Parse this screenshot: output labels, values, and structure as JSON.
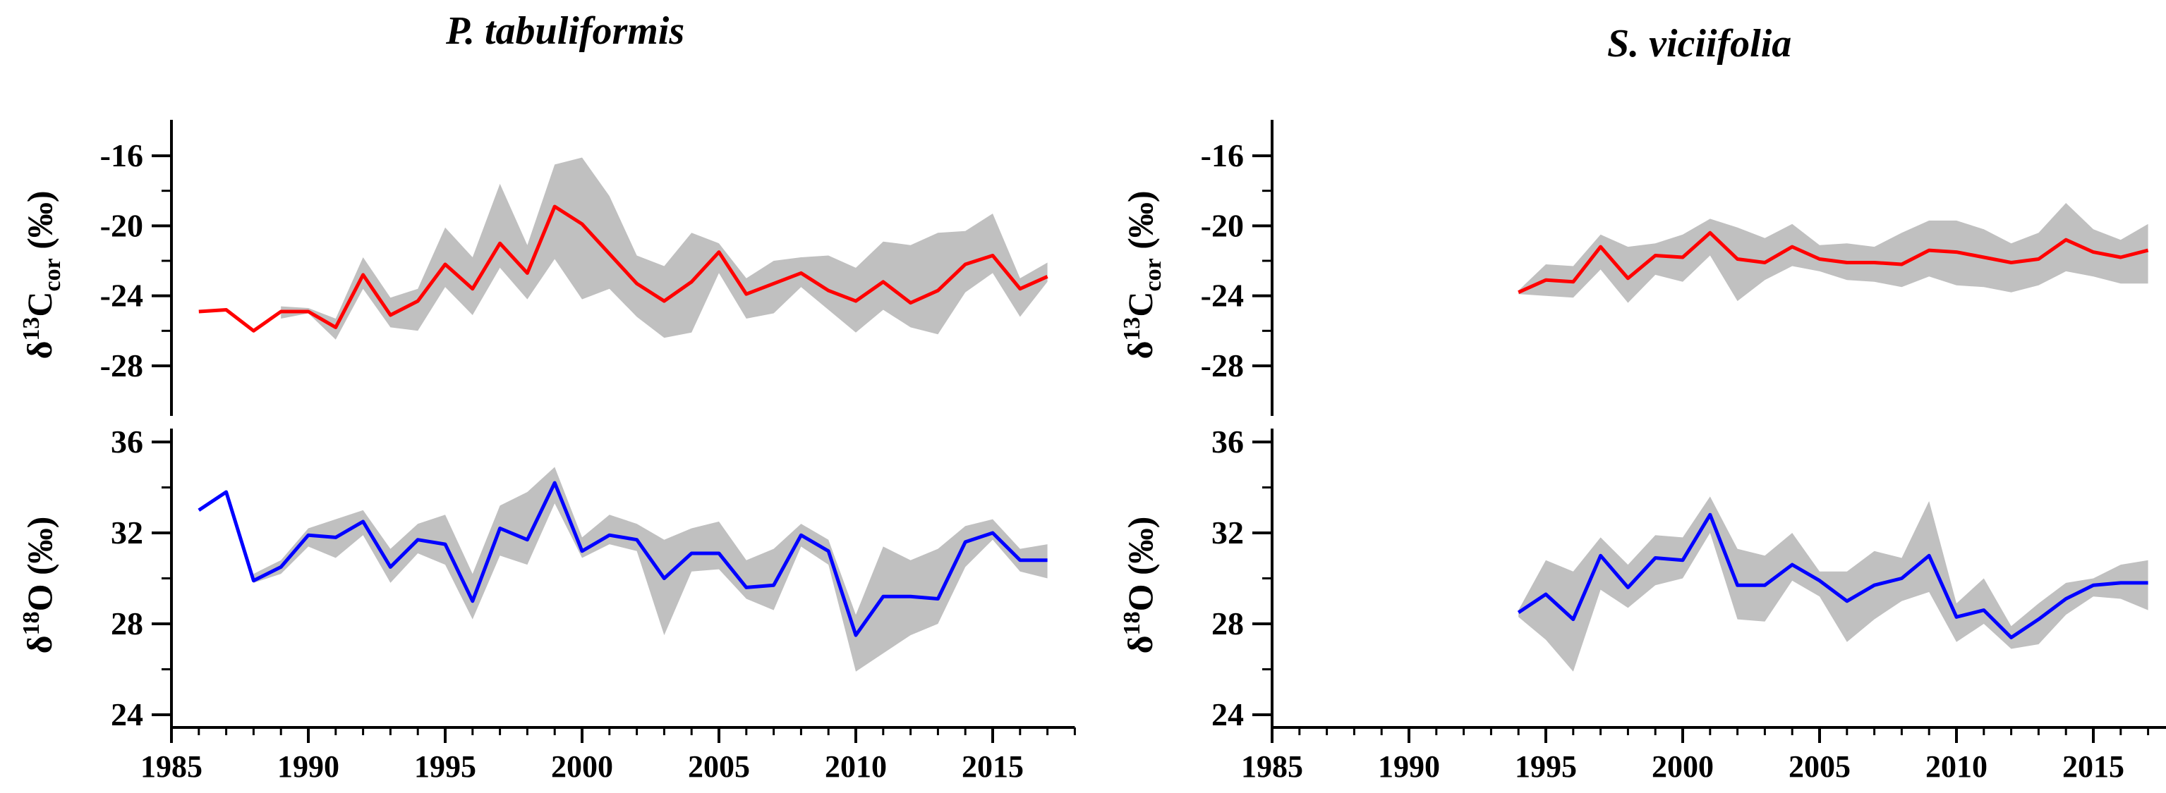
{
  "figure": {
    "titles": [
      "P. tabuliformis",
      "S. viciifolia"
    ]
  },
  "chart_data": [
    {
      "type": "line",
      "panel": "P. tabuliformis — carbon",
      "title": "P. tabuliformis",
      "xlabel": "",
      "ylabel": {
        "prefix": "δ",
        "sup": "13",
        "main": "C",
        "sub": "cor",
        "suffix": " (‰)"
      },
      "xlim": [
        1985,
        2018
      ],
      "ylim": [
        -30,
        -14
      ],
      "yticks": [
        -28,
        -24,
        -20,
        -16
      ],
      "ytick_labels": [
        "-28",
        "-24",
        "-20",
        "-16"
      ],
      "line_color": "#ff0000",
      "band_color": "#c0c0c0",
      "series": [
        {
          "name": "δ13Ccor mean",
          "x": [
            1986,
            1987,
            1988,
            1989,
            1990,
            1991,
            1992,
            1993,
            1994,
            1995,
            1996,
            1997,
            1998,
            1999,
            2000,
            2001,
            2002,
            2003,
            2004,
            2005,
            2006,
            2007,
            2008,
            2009,
            2010,
            2011,
            2012,
            2013,
            2014,
            2015,
            2016,
            2017
          ],
          "values": [
            -24.9,
            -24.8,
            -26.0,
            -24.9,
            -24.9,
            -25.8,
            -22.8,
            -25.1,
            -24.3,
            -22.2,
            -23.6,
            -21.0,
            -22.7,
            -18.9,
            -19.9,
            -21.6,
            -23.3,
            -24.3,
            -23.2,
            -21.5,
            -23.9,
            -23.3,
            -22.7,
            -23.7,
            -24.3,
            -23.2,
            -24.4,
            -23.7,
            -22.2,
            -21.7,
            -23.6,
            -22.9
          ],
          "band_x": [
            1989,
            1990,
            1991,
            1992,
            1993,
            1994,
            1995,
            1996,
            1997,
            1998,
            1999,
            2000,
            2001,
            2002,
            2003,
            2004,
            2005,
            2006,
            2007,
            2008,
            2009,
            2010,
            2011,
            2012,
            2013,
            2014,
            2015,
            2016,
            2017
          ],
          "band_low": [
            -25.3,
            -25.0,
            -26.5,
            -23.6,
            -25.8,
            -26.0,
            -23.5,
            -25.1,
            -22.4,
            -24.2,
            -21.9,
            -24.2,
            -23.6,
            -25.2,
            -26.4,
            -26.1,
            -22.7,
            -25.3,
            -25.0,
            -23.5,
            -24.8,
            -26.1,
            -24.8,
            -25.8,
            -26.2,
            -23.8,
            -22.7,
            -25.2,
            -23.2
          ],
          "band_high": [
            -24.6,
            -24.7,
            -25.3,
            -21.8,
            -24.1,
            -23.6,
            -20.1,
            -21.8,
            -17.6,
            -21.1,
            -16.5,
            -16.1,
            -18.3,
            -21.7,
            -22.3,
            -20.4,
            -21.0,
            -23.0,
            -22.0,
            -21.8,
            -21.7,
            -22.4,
            -20.9,
            -21.1,
            -20.4,
            -20.3,
            -19.3,
            -23.0,
            -22.1
          ]
        }
      ]
    },
    {
      "type": "line",
      "panel": "P. tabuliformis — oxygen",
      "title": "",
      "xlabel": "",
      "ylabel": {
        "prefix": "δ",
        "sup": "18",
        "main": "O",
        "sub": "",
        "suffix": " (‰)"
      },
      "xlim": [
        1985,
        2018
      ],
      "ylim": [
        24,
        36
      ],
      "yticks": [
        24,
        28,
        32,
        36
      ],
      "ytick_labels": [
        "24",
        "28",
        "32",
        "36"
      ],
      "xticks": [
        1985,
        1990,
        1995,
        2000,
        2005,
        2010,
        2015
      ],
      "xtick_labels": [
        "1985",
        "1990",
        "1995",
        "2000",
        "2005",
        "2010",
        "2015"
      ],
      "line_color": "#0000ff",
      "band_color": "#c0c0c0",
      "series": [
        {
          "name": "δ18O mean",
          "x": [
            1986,
            1987,
            1988,
            1989,
            1990,
            1991,
            1992,
            1993,
            1994,
            1995,
            1996,
            1997,
            1998,
            1999,
            2000,
            2001,
            2002,
            2003,
            2004,
            2005,
            2006,
            2007,
            2008,
            2009,
            2010,
            2011,
            2012,
            2013,
            2014,
            2015,
            2016,
            2017
          ],
          "values": [
            33.0,
            33.8,
            29.9,
            30.5,
            31.9,
            31.8,
            32.5,
            30.5,
            31.7,
            31.5,
            29.0,
            32.2,
            31.7,
            34.2,
            31.2,
            31.9,
            31.7,
            30.0,
            31.1,
            31.1,
            29.6,
            29.7,
            31.9,
            31.2,
            27.5,
            29.2,
            29.2,
            29.1,
            31.6,
            32.0,
            30.8,
            30.8
          ],
          "band_x": [
            1988,
            1989,
            1990,
            1991,
            1992,
            1993,
            1994,
            1995,
            1996,
            1997,
            1998,
            1999,
            2000,
            2001,
            2002,
            2003,
            2004,
            2005,
            2006,
            2007,
            2008,
            2009,
            2010,
            2011,
            2012,
            2013,
            2014,
            2015,
            2016,
            2017
          ],
          "band_low": [
            29.8,
            30.2,
            31.4,
            30.9,
            31.9,
            29.8,
            31.1,
            30.6,
            28.2,
            31.0,
            30.6,
            33.3,
            30.9,
            31.5,
            31.2,
            27.5,
            30.3,
            30.4,
            29.1,
            28.6,
            31.4,
            30.6,
            25.9,
            26.7,
            27.5,
            28.0,
            30.5,
            31.7,
            30.3,
            30.0
          ],
          "band_high": [
            30.2,
            30.8,
            32.2,
            32.6,
            33.0,
            31.3,
            32.4,
            32.8,
            30.2,
            33.2,
            33.8,
            34.9,
            31.8,
            32.8,
            32.4,
            31.7,
            32.2,
            32.5,
            30.8,
            31.3,
            32.4,
            31.7,
            28.4,
            31.4,
            30.8,
            31.3,
            32.3,
            32.6,
            31.3,
            31.5
          ]
        }
      ]
    },
    {
      "type": "line",
      "panel": "S. viciifolia — carbon",
      "title": "S. viciifolia",
      "xlabel": "",
      "ylabel": {
        "prefix": "δ",
        "sup": "13",
        "main": "C",
        "sub": "cor",
        "suffix": " (‰)"
      },
      "xlim": [
        1985,
        2018
      ],
      "ylim": [
        -30,
        -14
      ],
      "yticks": [
        -28,
        -24,
        -20,
        -16
      ],
      "ytick_labels": [
        "-28",
        "-24",
        "-20",
        "-16"
      ],
      "line_color": "#ff0000",
      "band_color": "#c0c0c0",
      "series": [
        {
          "name": "δ13Ccor mean",
          "x": [
            1994,
            1995,
            1996,
            1997,
            1998,
            1999,
            2000,
            2001,
            2002,
            2003,
            2004,
            2005,
            2006,
            2007,
            2008,
            2009,
            2010,
            2011,
            2012,
            2013,
            2014,
            2015,
            2016,
            2017
          ],
          "values": [
            -23.8,
            -23.1,
            -23.2,
            -21.2,
            -23.0,
            -21.7,
            -21.8,
            -20.4,
            -21.9,
            -22.1,
            -21.2,
            -21.9,
            -22.1,
            -22.1,
            -22.2,
            -21.4,
            -21.5,
            -21.8,
            -22.1,
            -21.9,
            -20.8,
            -21.5,
            -21.8,
            -21.4
          ],
          "band_x": [
            1994,
            1995,
            1996,
            1997,
            1998,
            1999,
            2000,
            2001,
            2002,
            2003,
            2004,
            2005,
            2006,
            2007,
            2008,
            2009,
            2010,
            2011,
            2012,
            2013,
            2014,
            2015,
            2016,
            2017
          ],
          "band_low": [
            -23.9,
            -24.0,
            -24.1,
            -22.5,
            -24.4,
            -22.8,
            -23.2,
            -21.7,
            -24.3,
            -23.1,
            -22.3,
            -22.6,
            -23.1,
            -23.2,
            -23.5,
            -22.9,
            -23.4,
            -23.5,
            -23.8,
            -23.4,
            -22.6,
            -22.9,
            -23.3,
            -23.3
          ],
          "band_high": [
            -23.7,
            -22.2,
            -22.3,
            -20.5,
            -21.2,
            -21.0,
            -20.5,
            -19.6,
            -20.1,
            -20.7,
            -19.9,
            -21.1,
            -21.0,
            -21.2,
            -20.4,
            -19.7,
            -19.7,
            -20.2,
            -21.0,
            -20.4,
            -18.7,
            -20.2,
            -20.8,
            -19.9
          ]
        }
      ]
    },
    {
      "type": "line",
      "panel": "S. viciifolia — oxygen",
      "title": "",
      "xlabel": "",
      "ylabel": {
        "prefix": "δ",
        "sup": "18",
        "main": "O",
        "sub": "",
        "suffix": " (‰)"
      },
      "xlim": [
        1985,
        2018
      ],
      "ylim": [
        24,
        36
      ],
      "yticks": [
        24,
        28,
        32,
        36
      ],
      "ytick_labels": [
        "24",
        "28",
        "32",
        "36"
      ],
      "xticks": [
        1985,
        1990,
        1995,
        2000,
        2005,
        2010,
        2015
      ],
      "xtick_labels": [
        "1985",
        "1990",
        "1995",
        "2000",
        "2005",
        "2010",
        "2015"
      ],
      "line_color": "#0000ff",
      "band_color": "#c0c0c0",
      "series": [
        {
          "name": "δ18O mean",
          "x": [
            1994,
            1995,
            1996,
            1997,
            1998,
            1999,
            2000,
            2001,
            2002,
            2003,
            2004,
            2005,
            2006,
            2007,
            2008,
            2009,
            2010,
            2011,
            2012,
            2013,
            2014,
            2015,
            2016,
            2017
          ],
          "values": [
            28.5,
            29.3,
            28.2,
            31.0,
            29.6,
            30.9,
            30.8,
            32.8,
            29.7,
            29.7,
            30.6,
            29.9,
            29.0,
            29.7,
            30.0,
            31.0,
            28.3,
            28.6,
            27.4,
            28.2,
            29.1,
            29.7,
            29.8,
            29.8
          ],
          "band_x": [
            1994,
            1995,
            1996,
            1997,
            1998,
            1999,
            2000,
            2001,
            2002,
            2003,
            2004,
            2005,
            2006,
            2007,
            2008,
            2009,
            2010,
            2011,
            2012,
            2013,
            2014,
            2015,
            2016,
            2017
          ],
          "band_low": [
            28.3,
            27.3,
            25.9,
            29.5,
            28.7,
            29.7,
            30.0,
            32.0,
            28.2,
            28.1,
            29.9,
            29.2,
            27.2,
            28.2,
            29.0,
            29.4,
            27.2,
            28.0,
            26.9,
            27.1,
            28.4,
            29.2,
            29.1,
            28.6
          ],
          "band_high": [
            28.6,
            30.8,
            30.3,
            31.8,
            30.6,
            31.9,
            31.8,
            33.6,
            31.3,
            31.0,
            32.0,
            30.3,
            30.3,
            31.2,
            30.9,
            33.4,
            28.9,
            30.0,
            27.9,
            28.9,
            29.8,
            30.0,
            30.6,
            30.8
          ]
        }
      ]
    }
  ]
}
